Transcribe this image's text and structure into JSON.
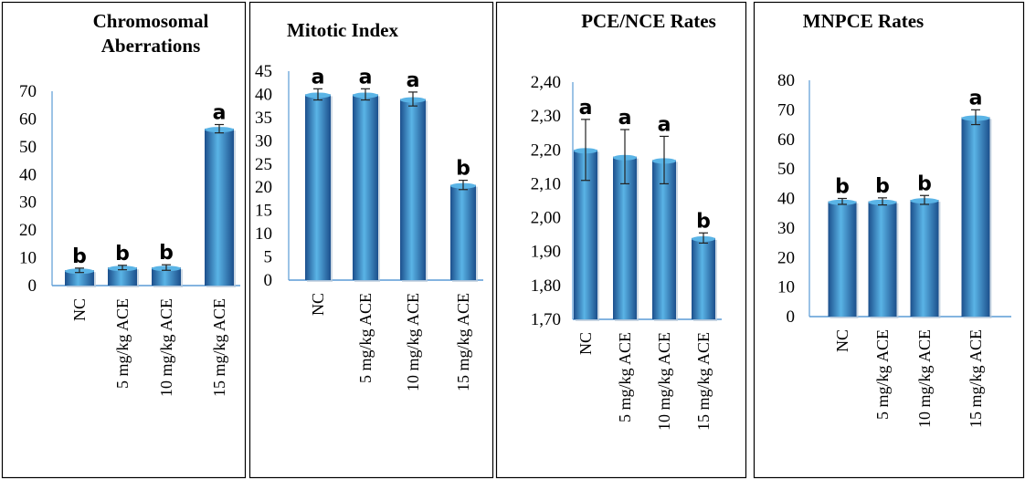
{
  "chart_data": [
    {
      "type": "bar",
      "title": "Chromosomal Aberrations",
      "categories": [
        "NC",
        "5 mg/kg ACE",
        "10 mg/kg ACE",
        "15 mg/kg ACE"
      ],
      "values": [
        5.5,
        6.5,
        6.5,
        56.5
      ],
      "errors": [
        0.8,
        0.8,
        1.0,
        1.5
      ],
      "significance": [
        "b",
        "b",
        "b",
        "a"
      ],
      "yticks": [
        "0",
        "10",
        "20",
        "30",
        "40",
        "50",
        "60",
        "70"
      ],
      "ylim": [
        0,
        70
      ]
    },
    {
      "type": "bar",
      "title": "Mitotic Index",
      "categories": [
        "NC",
        "5 mg/kg ACE",
        "10 mg/kg ACE",
        "15 mg/kg ACE"
      ],
      "values": [
        40,
        40,
        39,
        20.5
      ],
      "errors": [
        1.2,
        1.2,
        1.5,
        1.0
      ],
      "significance": [
        "a",
        "a",
        "a",
        "b"
      ],
      "yticks": [
        "0",
        "5",
        "10",
        "15",
        "20",
        "25",
        "30",
        "35",
        "40",
        "45"
      ],
      "ylim": [
        0,
        45
      ]
    },
    {
      "type": "bar",
      "title": "PCE/NCE Rates",
      "categories": [
        "NC",
        "5 mg/kg ACE",
        "10 mg/kg ACE",
        "15 mg/kg ACE"
      ],
      "values": [
        2.2,
        2.18,
        2.17,
        1.94
      ],
      "errors": [
        0.09,
        0.08,
        0.07,
        0.015
      ],
      "significance": [
        "a",
        "a",
        "a",
        "b"
      ],
      "yticks": [
        "1,70",
        "1,80",
        "1,90",
        "2,00",
        "2,10",
        "2,20",
        "2,30",
        "2,40"
      ],
      "ylim": [
        1.7,
        2.4
      ]
    },
    {
      "type": "bar",
      "title": "MNPCE Rates",
      "categories": [
        "NC",
        "5 mg/kg ACE",
        "10 mg/kg ACE",
        "15 mg/kg ACE"
      ],
      "values": [
        39,
        39,
        39.5,
        67.5
      ],
      "errors": [
        1.0,
        1.2,
        1.5,
        2.5
      ],
      "significance": [
        "b",
        "b",
        "b",
        "a"
      ],
      "yticks": [
        "0",
        "10",
        "20",
        "30",
        "40",
        "50",
        "60",
        "70",
        "80"
      ],
      "ylim": [
        0,
        80
      ]
    }
  ],
  "colors": {
    "bar_light": "#5ab4e6",
    "bar_mid": "#2f7fc8",
    "bar_dark": "#1c4f8c",
    "axis": "#5b9bd5",
    "frame": "#000000"
  }
}
